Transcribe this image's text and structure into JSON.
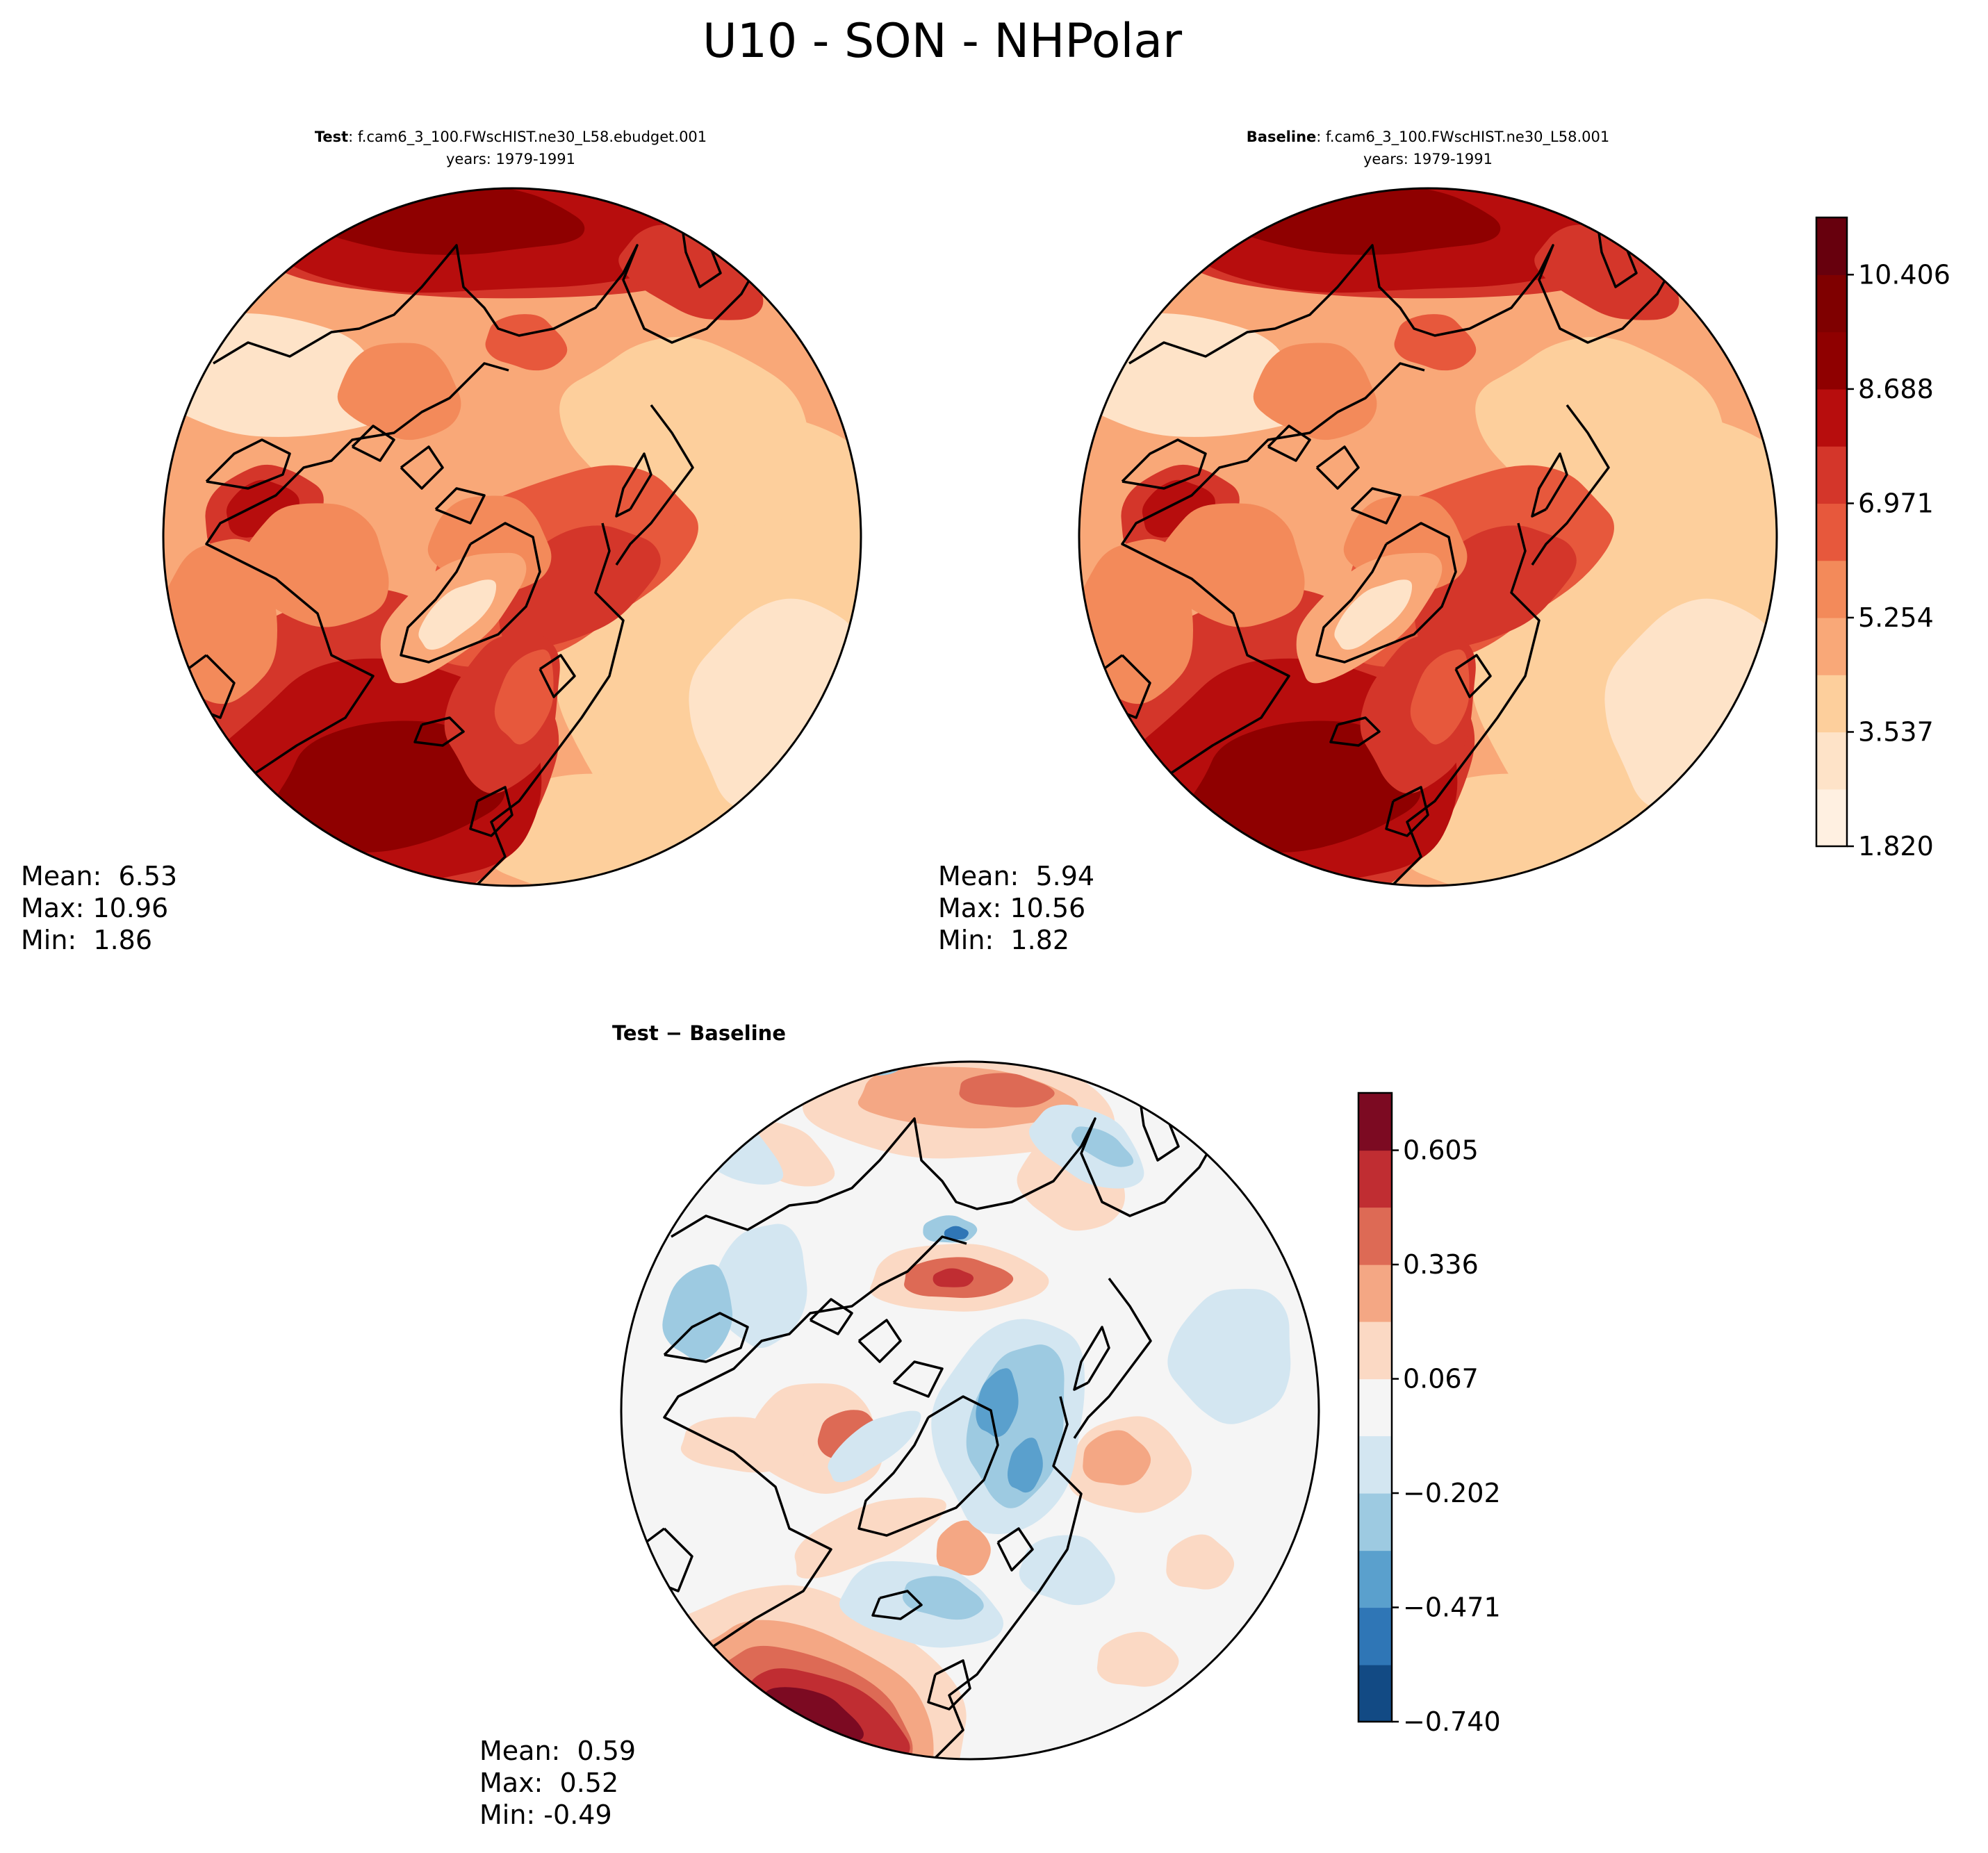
{
  "figure": {
    "title": "U10 - SON - NHPolar"
  },
  "panels": {
    "test": {
      "title_bold": "Test",
      "title_rest": ": f.cam6_3_100.FWscHIST.ne30_L58.ebudget.001",
      "years": "years: 1979-1991",
      "stats": {
        "mean": "Mean:  6.53",
        "max": "Max: 10.96",
        "min": "Min:  1.86"
      }
    },
    "baseline": {
      "title_bold": "Baseline",
      "title_rest": ": f.cam6_3_100.FWscHIST.ne30_L58.001",
      "years": "years: 1979-1991",
      "stats": {
        "mean": "Mean:  5.94",
        "max": "Max: 10.56",
        "min": "Min:  1.82"
      }
    },
    "diff": {
      "title": "Test − Baseline",
      "stats": {
        "mean": "Mean:  0.59",
        "max": "Max:  0.52",
        "min": "Min: -0.49"
      }
    }
  },
  "colors": {
    "sequential": [
      "#fff5eb",
      "#fee6ce",
      "#fdd0a2",
      "#fdae6b",
      "#fd8d3c",
      "#f16913",
      "#e34a33",
      "#d7301f",
      "#b30000",
      "#7f0000",
      "#67000d"
    ],
    "sequential_used": [
      "#fff0e1",
      "#fee3c8",
      "#fdcf9c",
      "#f9a878",
      "#f38a5a",
      "#e7583c",
      "#d4362a",
      "#b70d0d",
      "#8f0000"
    ],
    "diverging": [
      "#053061",
      "#2166ac",
      "#4393c3",
      "#92c5de",
      "#d1e5f0",
      "#f7f7f7",
      "#fddbc7",
      "#f4a582",
      "#d6604d",
      "#b2182b",
      "#67001f"
    ],
    "diverging_used": [
      "#124a84",
      "#2f76b6",
      "#5aa0cd",
      "#9dcae1",
      "#d3e6f1",
      "#f5f5f5",
      "#fbd9c4",
      "#f4a784",
      "#dd6a55",
      "#c02d32",
      "#7c0a22"
    ]
  },
  "chart_data": [
    {
      "type": "heatmap",
      "projection": "north-polar-stereographic",
      "panel": "test",
      "variable": "U10",
      "season": "SON",
      "mean": 6.53,
      "max": 10.96,
      "min": 1.86,
      "colorbar": {
        "levels": [
          1.82,
          2.679,
          3.537,
          4.396,
          5.254,
          6.113,
          6.971,
          7.83,
          8.688,
          9.547,
          10.406,
          11.265
        ],
        "tick_labels": [
          "1.820",
          "3.537",
          "5.254",
          "6.971",
          "8.688",
          "10.406"
        ]
      }
    },
    {
      "type": "heatmap",
      "projection": "north-polar-stereographic",
      "panel": "baseline",
      "variable": "U10",
      "season": "SON",
      "mean": 5.94,
      "max": 10.56,
      "min": 1.82,
      "colorbar": {
        "levels": [
          1.82,
          2.679,
          3.537,
          4.396,
          5.254,
          6.113,
          6.971,
          7.83,
          8.688,
          9.547,
          10.406,
          11.265
        ],
        "tick_labels": [
          "1.820",
          "3.537",
          "5.254",
          "6.971",
          "8.688",
          "10.406"
        ]
      }
    },
    {
      "type": "heatmap",
      "projection": "north-polar-stereographic",
      "panel": "diff",
      "variable": "U10",
      "season": "SON",
      "mean": 0.59,
      "max": 0.52,
      "min": -0.49,
      "colorbar": {
        "levels": [
          -0.74,
          -0.606,
          -0.471,
          -0.337,
          -0.202,
          -0.067,
          0.067,
          0.202,
          0.336,
          0.471,
          0.605,
          0.74
        ],
        "tick_labels": [
          "−0.740",
          "−0.471",
          "−0.202",
          "0.067",
          "0.336",
          "0.605"
        ]
      }
    }
  ]
}
